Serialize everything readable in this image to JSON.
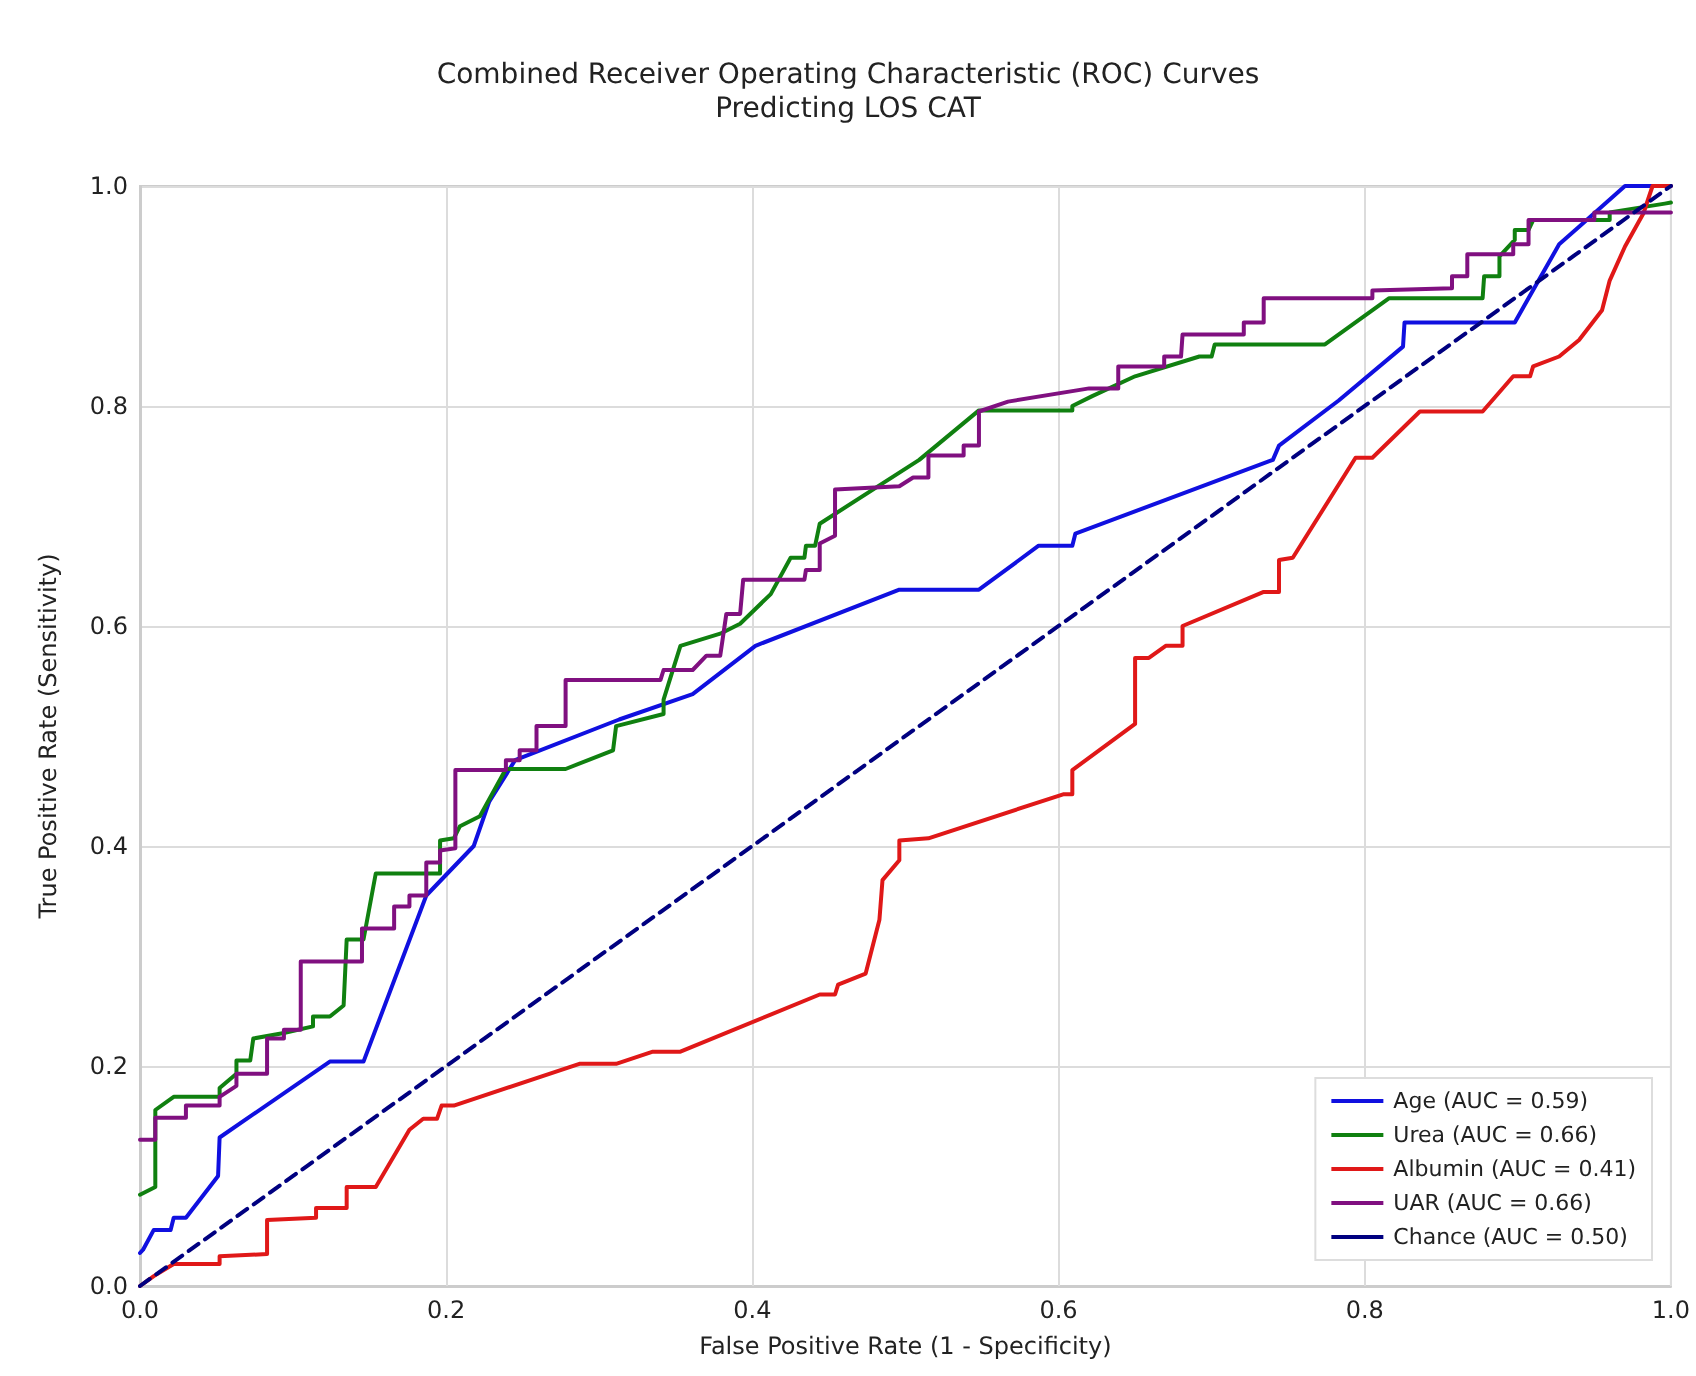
{
  "chart_data": {
    "type": "line",
    "title": "Combined Receiver Operating Characteristic (ROC) Curves\nPredicting LOS CAT",
    "xlabel": "False Positive Rate (1 - Specificity)",
    "ylabel": "True Positive Rate (Sensitivity)",
    "xlim": [
      0,
      1
    ],
    "ylim": [
      0,
      1
    ],
    "xticks": [
      {
        "value": 0,
        "label": "0.0"
      },
      {
        "value": 0.2,
        "label": "0.2"
      },
      {
        "value": 0.4,
        "label": "0.4"
      },
      {
        "value": 0.6,
        "label": "0.6"
      },
      {
        "value": 0.8,
        "label": "0.8"
      },
      {
        "value": 1,
        "label": "1.0"
      }
    ],
    "yticks": [
      {
        "value": 0,
        "label": "0.0"
      },
      {
        "value": 0.2,
        "label": "0.2"
      },
      {
        "value": 0.4,
        "label": "0.4"
      },
      {
        "value": 0.6,
        "label": "0.6"
      },
      {
        "value": 0.8,
        "label": "0.8"
      },
      {
        "value": 1,
        "label": "1.0"
      }
    ],
    "grid": true,
    "legend": "bottom right",
    "marker": "none",
    "series": [
      {
        "name": "Age (AUC = 0.59)",
        "color": "#1010e0",
        "line_style": "solid",
        "x": [
          0,
          0.002,
          0.009,
          0.02,
          0.022,
          0.03,
          0.051,
          0.052,
          0.124,
          0.146,
          0.187,
          0.218,
          0.228,
          0.245,
          0.313,
          0.361,
          0.402,
          0.496,
          0.548,
          0.587,
          0.609,
          0.611,
          0.74,
          0.744,
          0.783,
          0.825,
          0.826,
          0.898,
          0.927,
          0.94,
          0.97,
          0.996,
          1
        ],
        "values": [
          0.03,
          0.033,
          0.051,
          0.051,
          0.062,
          0.062,
          0.1,
          0.135,
          0.204,
          0.204,
          0.355,
          0.4,
          0.44,
          0.478,
          0.515,
          0.538,
          0.582,
          0.633,
          0.633,
          0.673,
          0.673,
          0.684,
          0.751,
          0.764,
          0.805,
          0.854,
          0.876,
          0.876,
          0.947,
          0.963,
          1,
          1,
          1
        ]
      },
      {
        "name": "Urea (AUC = 0.66)",
        "color": "#108010",
        "line_style": "solid",
        "x": [
          0,
          0.01,
          0.01,
          0.022,
          0.052,
          0.052,
          0.063,
          0.063,
          0.072,
          0.074,
          0.094,
          0.113,
          0.113,
          0.124,
          0.133,
          0.135,
          0.146,
          0.154,
          0.196,
          0.196,
          0.205,
          0.209,
          0.222,
          0.239,
          0.278,
          0.309,
          0.311,
          0.342,
          0.342,
          0.353,
          0.379,
          0.392,
          0.412,
          0.425,
          0.434,
          0.435,
          0.441,
          0.444,
          0.509,
          0.548,
          0.609,
          0.609,
          0.622,
          0.65,
          0.692,
          0.7,
          0.702,
          0.774,
          0.816,
          0.877,
          0.878,
          0.888,
          0.888,
          0.898,
          0.898,
          0.907,
          0.91,
          0.96,
          0.96,
          0.996,
          1
        ],
        "values": [
          0.083,
          0.09,
          0.16,
          0.172,
          0.172,
          0.18,
          0.193,
          0.205,
          0.205,
          0.225,
          0.23,
          0.236,
          0.245,
          0.245,
          0.255,
          0.315,
          0.315,
          0.375,
          0.375,
          0.405,
          0.407,
          0.418,
          0.427,
          0.47,
          0.47,
          0.487,
          0.509,
          0.52,
          0.533,
          0.582,
          0.593,
          0.602,
          0.629,
          0.662,
          0.662,
          0.673,
          0.673,
          0.693,
          0.751,
          0.796,
          0.796,
          0.8,
          0.809,
          0.827,
          0.845,
          0.845,
          0.856,
          0.856,
          0.898,
          0.898,
          0.918,
          0.918,
          0.936,
          0.951,
          0.96,
          0.96,
          0.969,
          0.969,
          0.976,
          0.984,
          0.985
        ]
      },
      {
        "name": "Albumin (AUC = 0.41)",
        "color": "#e01818",
        "line_style": "solid",
        "x": [
          0,
          0.009,
          0.022,
          0.052,
          0.052,
          0.083,
          0.083,
          0.115,
          0.115,
          0.135,
          0.135,
          0.154,
          0.176,
          0.185,
          0.194,
          0.197,
          0.205,
          0.287,
          0.311,
          0.335,
          0.353,
          0.444,
          0.454,
          0.456,
          0.474,
          0.483,
          0.485,
          0.496,
          0.496,
          0.515,
          0.603,
          0.609,
          0.609,
          0.65,
          0.65,
          0.659,
          0.67,
          0.681,
          0.681,
          0.734,
          0.744,
          0.744,
          0.753,
          0.794,
          0.805,
          0.836,
          0.877,
          0.897,
          0.908,
          0.91,
          0.927,
          0.94,
          0.955,
          0.96,
          0.97,
          0.982,
          0.988,
          1
        ],
        "values": [
          0,
          0.009,
          0.02,
          0.02,
          0.027,
          0.029,
          0.06,
          0.062,
          0.071,
          0.071,
          0.09,
          0.09,
          0.142,
          0.152,
          0.152,
          0.164,
          0.164,
          0.202,
          0.202,
          0.213,
          0.213,
          0.265,
          0.265,
          0.274,
          0.284,
          0.333,
          0.369,
          0.387,
          0.405,
          0.407,
          0.447,
          0.447,
          0.469,
          0.511,
          0.571,
          0.571,
          0.582,
          0.582,
          0.6,
          0.631,
          0.631,
          0.66,
          0.662,
          0.753,
          0.753,
          0.795,
          0.795,
          0.827,
          0.827,
          0.836,
          0.845,
          0.86,
          0.887,
          0.914,
          0.945,
          0.975,
          1,
          1
        ]
      },
      {
        "name": "UAR (AUC = 0.66)",
        "color": "#801080",
        "line_style": "solid",
        "x": [
          0,
          0.01,
          0.01,
          0.03,
          0.03,
          0.052,
          0.052,
          0.063,
          0.063,
          0.083,
          0.083,
          0.094,
          0.094,
          0.105,
          0.105,
          0.145,
          0.145,
          0.166,
          0.166,
          0.176,
          0.176,
          0.187,
          0.187,
          0.196,
          0.196,
          0.206,
          0.206,
          0.239,
          0.239,
          0.248,
          0.248,
          0.259,
          0.259,
          0.278,
          0.278,
          0.34,
          0.342,
          0.361,
          0.37,
          0.379,
          0.383,
          0.392,
          0.394,
          0.434,
          0.435,
          0.444,
          0.444,
          0.454,
          0.454,
          0.496,
          0.505,
          0.515,
          0.515,
          0.538,
          0.538,
          0.548,
          0.548,
          0.567,
          0.62,
          0.639,
          0.639,
          0.669,
          0.669,
          0.68,
          0.681,
          0.721,
          0.721,
          0.734,
          0.734,
          0.805,
          0.805,
          0.857,
          0.857,
          0.867,
          0.867,
          0.897,
          0.897,
          0.907,
          0.907,
          0.95,
          0.95,
          1
        ],
        "values": [
          0.133,
          0.133,
          0.153,
          0.153,
          0.164,
          0.164,
          0.172,
          0.182,
          0.193,
          0.193,
          0.225,
          0.225,
          0.233,
          0.233,
          0.295,
          0.295,
          0.325,
          0.325,
          0.345,
          0.345,
          0.355,
          0.355,
          0.385,
          0.385,
          0.396,
          0.398,
          0.469,
          0.469,
          0.478,
          0.478,
          0.487,
          0.487,
          0.509,
          0.509,
          0.551,
          0.551,
          0.56,
          0.56,
          0.573,
          0.573,
          0.611,
          0.611,
          0.642,
          0.642,
          0.651,
          0.651,
          0.675,
          0.682,
          0.724,
          0.727,
          0.735,
          0.735,
          0.755,
          0.755,
          0.764,
          0.764,
          0.795,
          0.804,
          0.816,
          0.816,
          0.836,
          0.836,
          0.845,
          0.845,
          0.865,
          0.865,
          0.876,
          0.876,
          0.898,
          0.898,
          0.905,
          0.907,
          0.918,
          0.918,
          0.938,
          0.938,
          0.947,
          0.947,
          0.969,
          0.969,
          0.976,
          0.976
        ]
      },
      {
        "name": "Chance (AUC = 0.50)",
        "color": "#000080",
        "line_style": "dashed",
        "x": [
          0,
          1
        ],
        "values": [
          0,
          1
        ]
      }
    ]
  }
}
